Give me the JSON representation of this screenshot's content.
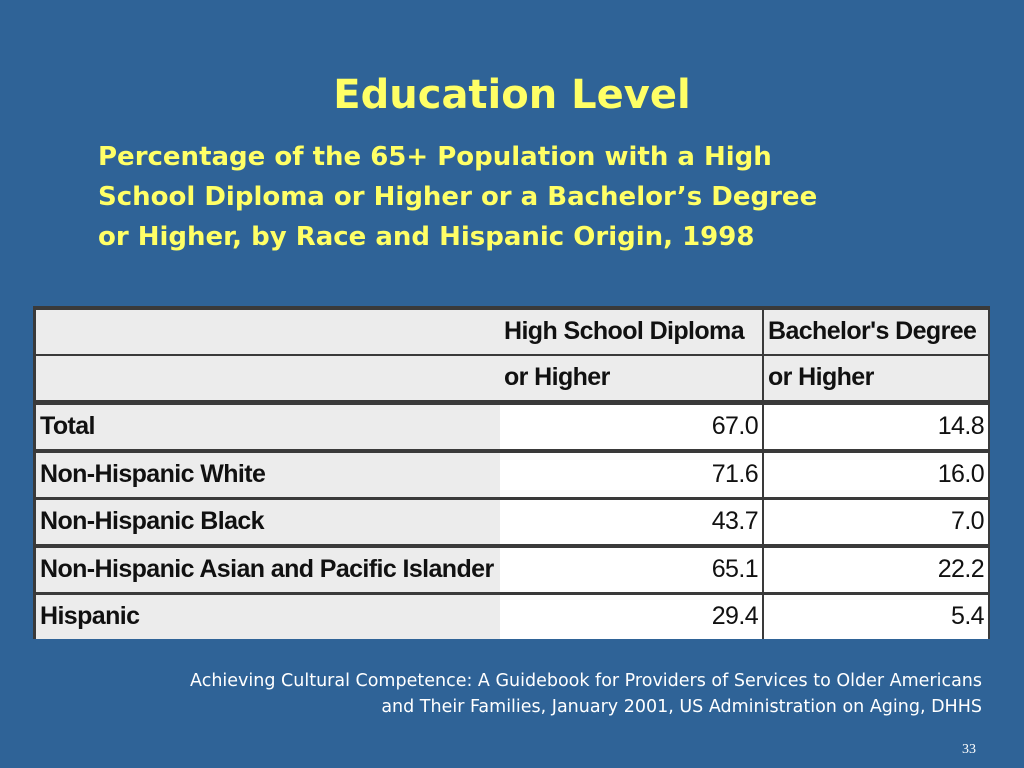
{
  "title": "Education Level",
  "subtitle": [
    "Percentage of the 65+ Population with a High",
    "School Diploma or Higher or a Bachelor’s Degree",
    "or Higher, by Race and Hispanic Origin, 1998"
  ],
  "table": {
    "header": [
      [
        "High School Diploma",
        "or Higher"
      ],
      [
        "Bachelor's Degree",
        "or Higher"
      ]
    ],
    "rows": [
      [
        "Total",
        "67.0",
        "14.8"
      ],
      [
        "Non-Hispanic White",
        "71.6",
        "16.0"
      ],
      [
        "Non-Hispanic Black",
        "43.7",
        "7.0"
      ],
      [
        "Non-Hispanic Asian and Pacific Islander",
        "65.1",
        "22.2"
      ],
      [
        "Hispanic",
        "29.4",
        "5.4"
      ]
    ]
  },
  "source": [
    "Achieving Cultural Competence:  A Guidebook for Providers of Services to Older Americans",
    "and Their Families, January 2001, US Administration on Aging, DHHS"
  ],
  "page_number": "33"
}
